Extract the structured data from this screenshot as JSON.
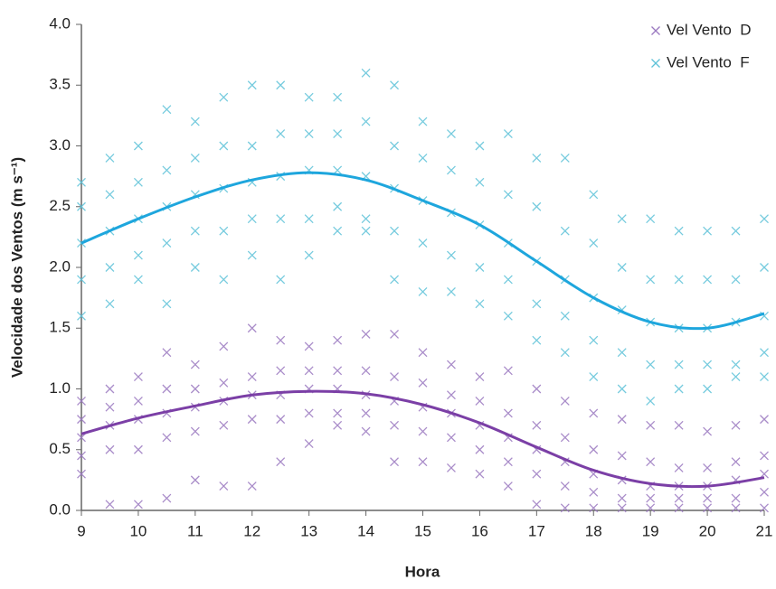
{
  "chart_data": {
    "type": "scatter",
    "xlabel": "Hora",
    "ylabel": "Velocidade dos Ventos (m s⁻¹)",
    "xlim": [
      9,
      21
    ],
    "xticks": [
      9,
      10,
      11,
      12,
      13,
      14,
      15,
      16,
      17,
      18,
      19,
      20,
      21
    ],
    "ylim": [
      0,
      4
    ],
    "yticks": [
      {
        "value": 0,
        "label": "0.0"
      },
      {
        "value": 0.5,
        "label": "0.5"
      },
      {
        "value": 1,
        "label": "1.0"
      },
      {
        "value": 1.5,
        "label": "1.5"
      },
      {
        "value": 2,
        "label": "2.0"
      },
      {
        "value": 2.5,
        "label": "2.5"
      },
      {
        "value": 3,
        "label": "3.0"
      },
      {
        "value": 3.5,
        "label": "3.5"
      },
      {
        "value": 4,
        "label": "4.0"
      }
    ],
    "grid": false,
    "legend": "top-right",
    "series": [
      {
        "name": "Vel Vento  D",
        "type": "scatter",
        "color": "#9a78c0",
        "x": [
          9,
          9.5,
          10,
          10.5,
          11,
          11.5,
          12,
          12.5,
          13,
          13.5,
          14,
          14.5,
          15,
          15.5,
          16,
          16.5,
          17,
          17.5,
          18,
          18.5,
          19,
          19.5,
          20,
          20.5,
          21
        ],
        "values": [
          [
            0.9,
            0.75,
            0.6,
            0.45,
            0.3
          ],
          [
            1.0,
            0.85,
            0.7,
            0.5,
            0.05
          ],
          [
            1.1,
            0.9,
            0.75,
            0.5,
            0.05
          ],
          [
            1.3,
            1.0,
            0.8,
            0.6,
            0.1
          ],
          [
            1.2,
            1.0,
            0.85,
            0.65,
            0.25
          ],
          [
            1.35,
            1.05,
            0.9,
            0.7,
            0.2
          ],
          [
            1.5,
            1.1,
            0.95,
            0.75,
            0.2
          ],
          [
            1.4,
            1.15,
            0.95,
            0.75,
            0.4
          ],
          [
            1.35,
            1.15,
            1.0,
            0.8,
            0.55
          ],
          [
            1.4,
            1.15,
            1.0,
            0.8,
            0.7
          ],
          [
            1.45,
            1.15,
            0.95,
            0.8,
            0.65
          ],
          [
            1.45,
            1.1,
            0.9,
            0.7,
            0.4
          ],
          [
            1.3,
            1.05,
            0.85,
            0.65,
            0.4
          ],
          [
            1.2,
            0.95,
            0.8,
            0.6,
            0.35
          ],
          [
            1.1,
            0.9,
            0.7,
            0.5,
            0.3
          ],
          [
            1.15,
            0.8,
            0.6,
            0.4,
            0.2
          ],
          [
            1.0,
            0.7,
            0.5,
            0.3,
            0.05
          ],
          [
            0.9,
            0.6,
            0.4,
            0.2,
            0.02
          ],
          [
            0.8,
            0.5,
            0.3,
            0.15,
            0.02
          ],
          [
            0.75,
            0.45,
            0.25,
            0.1,
            0.02
          ],
          [
            0.7,
            0.4,
            0.2,
            0.1,
            0.02
          ],
          [
            0.7,
            0.35,
            0.2,
            0.1,
            0.02
          ],
          [
            0.65,
            0.35,
            0.2,
            0.1,
            0.02
          ],
          [
            0.7,
            0.4,
            0.25,
            0.1,
            0.02
          ],
          [
            0.75,
            0.45,
            0.3,
            0.15,
            0.02
          ]
        ]
      },
      {
        "name": "Vel Vento  F",
        "type": "scatter",
        "color": "#5ec2d8",
        "x": [
          9,
          9.5,
          10,
          10.5,
          11,
          11.5,
          12,
          12.5,
          13,
          13.5,
          14,
          14.5,
          15,
          15.5,
          16,
          16.5,
          17,
          17.5,
          18,
          18.5,
          19,
          19.5,
          20,
          20.5,
          21
        ],
        "values": [
          [
            2.7,
            2.5,
            2.2,
            1.9,
            1.6
          ],
          [
            2.9,
            2.6,
            2.3,
            2.0,
            1.7
          ],
          [
            3.0,
            2.7,
            2.4,
            2.1,
            1.9
          ],
          [
            3.3,
            2.8,
            2.5,
            2.2,
            1.7
          ],
          [
            3.2,
            2.9,
            2.6,
            2.3,
            2.0
          ],
          [
            3.4,
            3.0,
            2.65,
            2.3,
            1.9
          ],
          [
            3.5,
            3.0,
            2.7,
            2.4,
            2.1
          ],
          [
            3.5,
            3.1,
            2.75,
            2.4,
            1.9
          ],
          [
            3.4,
            3.1,
            2.8,
            2.4,
            2.1
          ],
          [
            3.4,
            3.1,
            2.8,
            2.5,
            2.3
          ],
          [
            3.6,
            3.2,
            2.75,
            2.4,
            2.3
          ],
          [
            3.5,
            3.0,
            2.65,
            2.3,
            1.9
          ],
          [
            3.2,
            2.9,
            2.55,
            2.2,
            1.8
          ],
          [
            3.1,
            2.8,
            2.45,
            2.1,
            1.8
          ],
          [
            3.0,
            2.7,
            2.35,
            2.0,
            1.7
          ],
          [
            3.1,
            2.6,
            2.2,
            1.9,
            1.6
          ],
          [
            2.9,
            2.5,
            2.05,
            1.7,
            1.4
          ],
          [
            2.9,
            2.3,
            1.9,
            1.6,
            1.3
          ],
          [
            2.6,
            2.2,
            1.75,
            1.4,
            1.1
          ],
          [
            2.4,
            2.0,
            1.65,
            1.3,
            1.0
          ],
          [
            2.4,
            1.9,
            1.55,
            1.2,
            0.9
          ],
          [
            2.3,
            1.9,
            1.5,
            1.2,
            1.0
          ],
          [
            2.3,
            1.9,
            1.5,
            1.2,
            1.0
          ],
          [
            2.3,
            1.9,
            1.55,
            1.2,
            1.1
          ],
          [
            2.4,
            2.0,
            1.6,
            1.3,
            1.1
          ]
        ]
      },
      {
        "type": "line",
        "color": "#7b3fa6",
        "x": [
          9,
          10,
          11,
          12,
          13,
          14,
          15,
          16,
          17,
          18,
          19,
          20,
          21
        ],
        "values": [
          0.63,
          0.76,
          0.86,
          0.95,
          0.98,
          0.96,
          0.87,
          0.72,
          0.52,
          0.33,
          0.22,
          0.2,
          0.27
        ]
      },
      {
        "type": "line",
        "color": "#1ea6dd",
        "x": [
          9,
          10,
          11,
          12,
          13,
          14,
          15,
          16,
          17,
          18,
          19,
          20,
          21
        ],
        "values": [
          2.2,
          2.4,
          2.58,
          2.72,
          2.78,
          2.72,
          2.55,
          2.35,
          2.05,
          1.75,
          1.55,
          1.5,
          1.62
        ]
      }
    ]
  }
}
